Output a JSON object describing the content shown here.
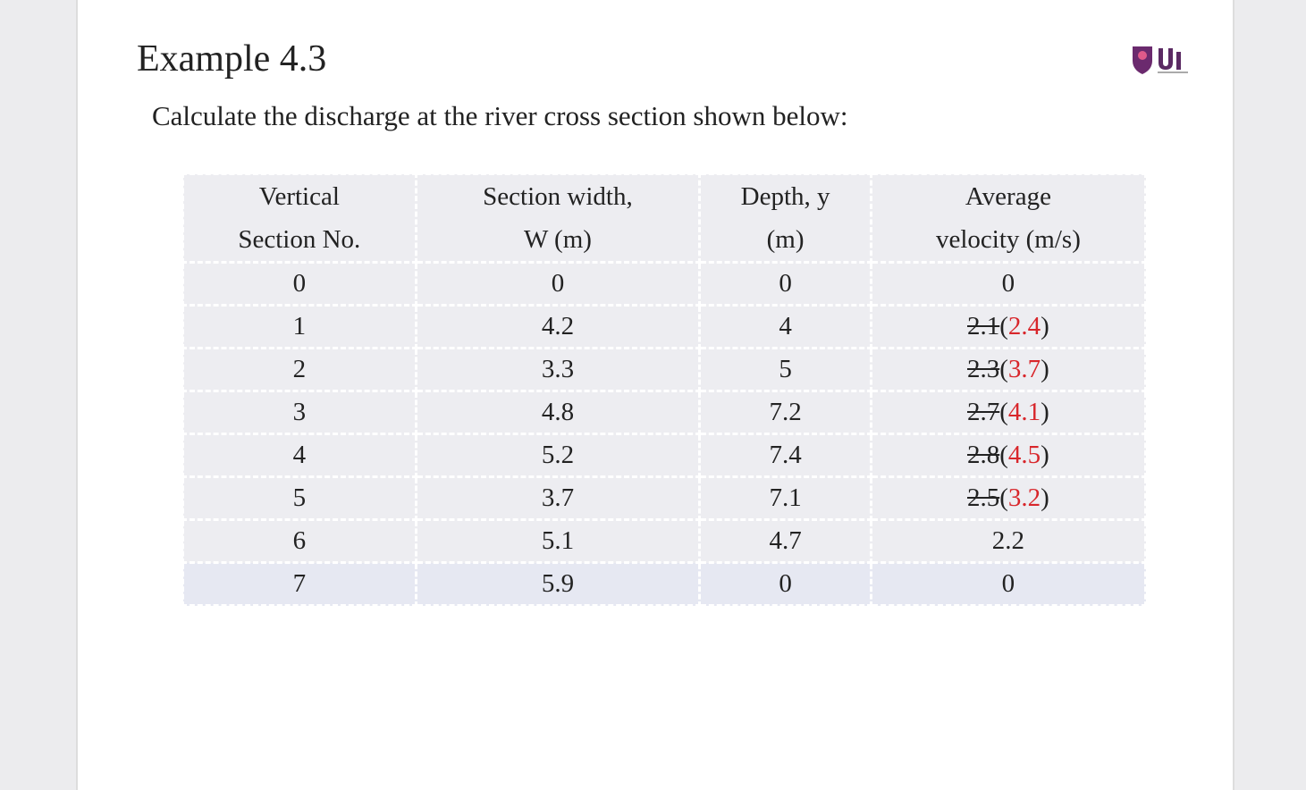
{
  "header": {
    "title": "Example 4.3",
    "subtitle": "Calculate the discharge at the river cross section shown below:"
  },
  "table": {
    "columns": [
      [
        "Vertical",
        "Section No."
      ],
      [
        "Section width,",
        "W (m)"
      ],
      [
        "Depth, y",
        "(m)"
      ],
      [
        "Average",
        "velocity (m/s)"
      ]
    ],
    "rows": [
      [
        "0",
        "0",
        "0",
        "0"
      ],
      [
        "1",
        "4.2",
        "4",
        {
          "struck": "2.1",
          "open": "(",
          "corrected": "2.4",
          "close": ")"
        }
      ],
      [
        "2",
        "3.3",
        "5",
        {
          "struck": "2.3",
          "open": "(",
          "corrected": "3.7",
          "close": ")"
        }
      ],
      [
        "3",
        "4.8",
        "7.2",
        {
          "struck": "2.7",
          "open": "(",
          "corrected": "4.1",
          "close": ")"
        }
      ],
      [
        "4",
        "5.2",
        "7.4",
        {
          "struck": "2.8",
          "open": "(",
          "corrected": "4.5",
          "close": ")"
        }
      ],
      [
        "5",
        "3.7",
        "7.1",
        {
          "struck": "2.5",
          "open": "(",
          "corrected": "3.2",
          "close": ")"
        }
      ],
      [
        "6",
        "5.1",
        "4.7",
        "2.2"
      ],
      [
        "7",
        "5.9",
        "0",
        "0"
      ]
    ]
  }
}
